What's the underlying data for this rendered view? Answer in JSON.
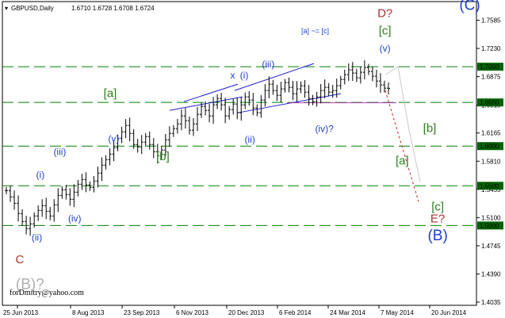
{
  "header": {
    "symbol_label": "GBPUSD,Daily",
    "ohlc_label": "1.6710 1.6728 1.6708 1.6724"
  },
  "watermark": "forDmitry@yahoo.com",
  "colors": {
    "background": "#ffffff",
    "candles": "#000000",
    "level_lines": "#008000",
    "level_label_bg": "#006400",
    "level_label_text": "#ffffff",
    "wave_blue": "#1f3fcf",
    "wave_green": "#2f7f1f",
    "wave_red": "#a83232",
    "wave_grey": "#b0b0b0",
    "forecast_red": "#d02020",
    "forecast_grey": "#c8c8c8",
    "channel_line": "#1f1fcf",
    "support_line": "#b040b0"
  },
  "chart_data": {
    "type": "line",
    "title": "GBPUSD,Daily",
    "ylim": [
      1.3995,
      1.782
    ],
    "y_ticks": [
      "1.7585",
      "1.7230",
      "1.6875",
      "1.6515",
      "1.6165",
      "1.5810",
      "1.5455",
      "1.5100",
      "1.4745",
      "1.4390",
      "1.4035"
    ],
    "x_ticks": [
      "25 Jun 2013",
      "8 Aug 2013",
      "23 Sep 2013",
      "6 Nov 2013",
      "20 Dec 2013",
      "6 Feb 2014",
      "24 Mar 2014",
      "7 May 2014",
      "20 Jun 2014"
    ],
    "price_close_series": [
      1.544,
      1.536,
      1.528,
      1.515,
      1.505,
      1.496,
      1.502,
      1.512,
      1.519,
      1.525,
      1.518,
      1.512,
      1.526,
      1.538,
      1.545,
      1.539,
      1.533,
      1.542,
      1.552,
      1.558,
      1.551,
      1.548,
      1.556,
      1.566,
      1.576,
      1.583,
      1.59,
      1.598,
      1.61,
      1.618,
      1.626,
      1.616,
      1.602,
      1.599,
      1.605,
      1.612,
      1.602,
      1.593,
      1.588,
      1.595,
      1.608,
      1.616,
      1.622,
      1.628,
      1.638,
      1.632,
      1.62,
      1.628,
      1.64,
      1.65,
      1.645,
      1.638,
      1.652,
      1.66,
      1.652,
      1.638,
      1.646,
      1.653,
      1.642,
      1.652,
      1.662,
      1.658,
      1.648,
      1.642,
      1.658,
      1.67,
      1.678,
      1.67,
      1.664,
      1.672,
      1.68,
      1.674,
      1.666,
      1.672,
      1.676,
      1.668,
      1.66,
      1.656,
      1.662,
      1.67,
      1.674,
      1.668,
      1.67,
      1.676,
      1.684,
      1.69,
      1.696,
      1.692,
      1.686,
      1.693,
      1.699,
      1.694,
      1.688,
      1.682,
      1.677,
      1.673,
      1.6724
    ],
    "levels": [
      {
        "label": "1.7000",
        "value": 1.7
      },
      {
        "label": "1.6550",
        "value": 1.655
      },
      {
        "label": "1.6000",
        "value": 1.6
      },
      {
        "label": "1.5500",
        "value": 1.55
      },
      {
        "label": "1.5000",
        "value": 1.5
      }
    ],
    "wave_labels": [
      {
        "text": "(C)",
        "color": "blue",
        "size": "large",
        "date": "2014-07-25",
        "price": 1.7715
      },
      {
        "text": "D?",
        "color": "red",
        "size": "medium",
        "date": "2014-05-12",
        "price": 1.7625
      },
      {
        "text": "[c]",
        "color": "green",
        "size": "medium",
        "date": "2014-05-12",
        "price": 1.7405
      },
      {
        "text": "(v)",
        "color": "blue",
        "size": "small",
        "date": "2014-05-12",
        "price": 1.719
      },
      {
        "text": "[a] ~= [c]",
        "color": "blue",
        "size": "tiny",
        "date": "2014-03-12",
        "price": 1.742
      },
      {
        "text": "(iii)",
        "color": "blue",
        "size": "small",
        "date": "2014-01-30",
        "price": 1.699
      },
      {
        "text": "x",
        "color": "blue",
        "size": "small",
        "date": "2013-12-30",
        "price": 1.685
      },
      {
        "text": "(i)",
        "color": "blue",
        "size": "small",
        "date": "2014-01-09",
        "price": 1.685
      },
      {
        "text": "(iv)?",
        "color": "blue",
        "size": "small",
        "date": "2014-03-20",
        "price": 1.6175
      },
      {
        "text": "(ii)",
        "color": "blue",
        "size": "small",
        "date": "2014-01-14",
        "price": 1.604
      },
      {
        "text": "[a]",
        "color": "green",
        "size": "medium",
        "date": "2013-09-14",
        "price": 1.6615
      },
      {
        "text": "(v)",
        "color": "blue",
        "size": "small",
        "date": "2013-09-17",
        "price": 1.605
      },
      {
        "text": "(iii)",
        "color": "blue",
        "size": "small",
        "date": "2013-08-01",
        "price": 1.589
      },
      {
        "text": "(i)",
        "color": "blue",
        "size": "small",
        "date": "2013-07-15",
        "price": 1.56
      },
      {
        "text": "(iv)",
        "color": "blue",
        "size": "small",
        "date": "2013-08-14",
        "price": 1.505
      },
      {
        "text": "(ii)",
        "color": "blue",
        "size": "small",
        "date": "2013-07-12",
        "price": 1.481
      },
      {
        "text": "[b]",
        "color": "green",
        "size": "medium",
        "date": "2013-10-30",
        "price": 1.5825
      },
      {
        "text": "C",
        "color": "red",
        "size": "medium",
        "date": "2013-06-27",
        "price": 1.4525
      },
      {
        "text": "(B)?",
        "color": "grey",
        "size": "large",
        "date": "2013-07-06",
        "price": 1.42
      },
      {
        "text": "[b]",
        "color": "green",
        "size": "medium",
        "date": "2014-06-20",
        "price": 1.6175
      },
      {
        "text": "[a]",
        "color": "green",
        "size": "medium",
        "date": "2014-05-27",
        "price": 1.577
      },
      {
        "text": "[c]",
        "color": "green",
        "size": "medium",
        "date": "2014-06-27",
        "price": 1.519
      },
      {
        "text": "E?",
        "color": "red",
        "size": "medium",
        "date": "2014-06-27",
        "price": 1.504
      },
      {
        "text": "(B)",
        "color": "blue",
        "size": "large",
        "date": "2014-06-27",
        "price": 1.4815
      }
    ]
  }
}
